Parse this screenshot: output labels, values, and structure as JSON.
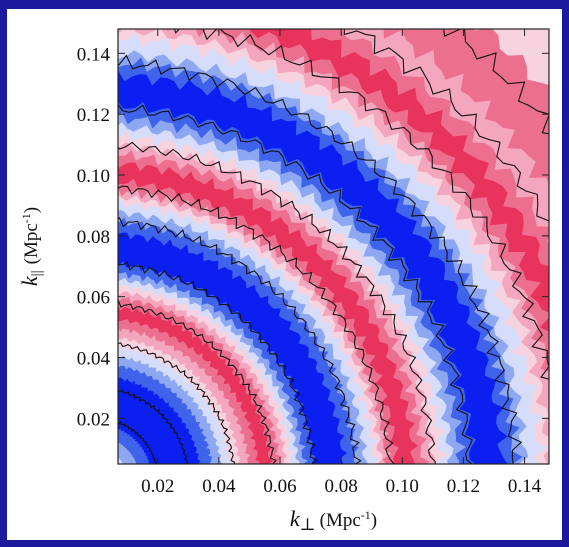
{
  "chart_data": {
    "type": "heatmap",
    "subtype": "filled-contour",
    "title": "",
    "xlabel": {
      "symbol": "k",
      "subscript": "⊥",
      "unit": "(Mpc",
      "unit_exp": "-1",
      "unit_close": ")"
    },
    "ylabel": {
      "symbol": "k",
      "subscript": "||",
      "unit": "(Mpc",
      "unit_exp": "-1",
      "unit_close": ")"
    },
    "xlim": [
      0.007,
      0.148
    ],
    "ylim": [
      0.005,
      0.148
    ],
    "x_ticks": [
      0.02,
      0.04,
      0.06,
      0.08,
      0.1,
      0.12,
      0.14
    ],
    "x_tick_labels": [
      "0.02",
      "0.04",
      "0.06",
      "0.08",
      "0.10",
      "0.12",
      "0.14"
    ],
    "y_ticks": [
      0.02,
      0.04,
      0.06,
      0.08,
      0.1,
      0.12,
      0.14
    ],
    "y_tick_labels": [
      "0.02",
      "0.04",
      "0.06",
      "0.08",
      "0.10",
      "0.12",
      "0.14"
    ],
    "grid": false,
    "legend": "none",
    "colors": {
      "deep_blue": "#0b20f0",
      "mid_blue": "#3f63ea",
      "light_blue": "#8ea7f2",
      "pale_blue": "#d6ddfa",
      "pale_pink": "#f7d3df",
      "light_pink": "#f3a6bd",
      "mid_pink": "#ec6f8f",
      "red": "#e8345c",
      "frame_background": "#1b1a9c"
    },
    "bands_radius": [
      {
        "to": 0.01,
        "color": "pale_blue"
      },
      {
        "to": 0.014,
        "color": "light_blue"
      },
      {
        "to": 0.018,
        "color": "mid_blue"
      },
      {
        "to": 0.034,
        "color": "deep_blue"
      },
      {
        "to": 0.038,
        "color": "mid_blue"
      },
      {
        "to": 0.041,
        "color": "light_blue"
      },
      {
        "to": 0.044,
        "color": "pale_blue"
      },
      {
        "to": 0.047,
        "color": "pale_pink"
      },
      {
        "to": 0.05,
        "color": "light_pink"
      },
      {
        "to": 0.053,
        "color": "mid_pink"
      },
      {
        "to": 0.057,
        "color": "red"
      },
      {
        "to": 0.06,
        "color": "mid_pink"
      },
      {
        "to": 0.062,
        "color": "light_pink"
      },
      {
        "to": 0.064,
        "color": "pale_pink"
      },
      {
        "to": 0.066,
        "color": "pale_blue"
      },
      {
        "to": 0.068,
        "color": "light_blue"
      },
      {
        "to": 0.071,
        "color": "mid_blue"
      },
      {
        "to": 0.081,
        "color": "deep_blue"
      },
      {
        "to": 0.085,
        "color": "mid_blue"
      },
      {
        "to": 0.088,
        "color": "light_blue"
      },
      {
        "to": 0.091,
        "color": "pale_blue"
      },
      {
        "to": 0.093,
        "color": "pale_pink"
      },
      {
        "to": 0.095,
        "color": "light_pink"
      },
      {
        "to": 0.098,
        "color": "mid_pink"
      },
      {
        "to": 0.104,
        "color": "red"
      },
      {
        "to": 0.107,
        "color": "mid_pink"
      },
      {
        "to": 0.11,
        "color": "light_pink"
      },
      {
        "to": 0.113,
        "color": "pale_pink"
      },
      {
        "to": 0.116,
        "color": "pale_blue"
      },
      {
        "to": 0.119,
        "color": "light_blue"
      },
      {
        "to": 0.123,
        "color": "mid_blue"
      },
      {
        "to": 0.133,
        "color": "deep_blue"
      },
      {
        "to": 0.137,
        "color": "mid_blue"
      },
      {
        "to": 0.14,
        "color": "light_blue"
      },
      {
        "to": 0.145,
        "color": "pale_blue"
      },
      {
        "to": 0.148,
        "color": "pale_pink"
      },
      {
        "to": 0.152,
        "color": "light_pink"
      },
      {
        "to": 0.156,
        "color": "mid_pink"
      },
      {
        "to": 0.163,
        "color": "red"
      },
      {
        "to": 0.168,
        "color": "mid_pink"
      },
      {
        "to": 0.176,
        "color": "light_pink"
      },
      {
        "to": 0.195,
        "color": "mid_pink"
      },
      {
        "to": 0.3,
        "color": "pale_pink"
      }
    ],
    "contour_radii": [
      0.02,
      0.03,
      0.045,
      0.058,
      0.071,
      0.085,
      0.096,
      0.11,
      0.122,
      0.137,
      0.152,
      0.17,
      0.188
    ]
  }
}
